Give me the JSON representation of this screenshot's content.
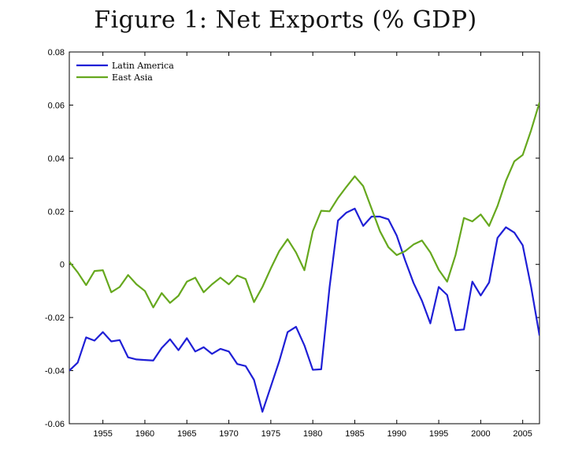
{
  "chart_data": {
    "type": "line",
    "title": "Figure 1: Net Exports (% GDP)",
    "xlabel": "",
    "ylabel": "",
    "xlim": [
      1951,
      2007
    ],
    "ylim": [
      -0.06,
      0.08
    ],
    "x_ticks": [
      1955,
      1960,
      1965,
      1970,
      1975,
      1980,
      1985,
      1990,
      1995,
      2000,
      2005
    ],
    "y_ticks": [
      -0.06,
      -0.04,
      -0.02,
      0,
      0.02,
      0.04,
      0.06,
      0.08
    ],
    "y_tick_labels": [
      "-0.06",
      "-0.04",
      "-0.02",
      "0",
      "0.02",
      "0.04",
      "0.06",
      "0.08"
    ],
    "grid": false,
    "legend_position": "top-left",
    "series": [
      {
        "name": "Latin America",
        "color": "#1f1fd6",
        "x": [
          1951,
          1952,
          1953,
          1954,
          1955,
          1956,
          1957,
          1958,
          1959,
          1960,
          1961,
          1962,
          1963,
          1964,
          1965,
          1966,
          1967,
          1968,
          1969,
          1970,
          1971,
          1972,
          1973,
          1974,
          1975,
          1976,
          1977,
          1978,
          1979,
          1980,
          1981,
          1982,
          1983,
          1984,
          1985,
          1986,
          1987,
          1988,
          1989,
          1990,
          1991,
          1992,
          1993,
          1994,
          1995,
          1996,
          1997,
          1998,
          1999,
          2000,
          2001,
          2002,
          2003,
          2004,
          2005,
          2006,
          2007
        ],
        "values": [
          -0.04,
          -0.037,
          -0.0275,
          -0.0287,
          -0.0255,
          -0.029,
          -0.0285,
          -0.035,
          -0.0358,
          -0.036,
          -0.0362,
          -0.0315,
          -0.0282,
          -0.0323,
          -0.0278,
          -0.0328,
          -0.0312,
          -0.0337,
          -0.0318,
          -0.0328,
          -0.0375,
          -0.0383,
          -0.0435,
          -0.0555,
          -0.046,
          -0.0365,
          -0.0255,
          -0.0235,
          -0.0305,
          -0.0397,
          -0.0395,
          -0.0085,
          0.0165,
          0.0195,
          0.021,
          0.0145,
          0.018,
          0.018,
          0.017,
          0.0108,
          0.0015,
          -0.007,
          -0.0137,
          -0.0222,
          -0.0085,
          -0.0115,
          -0.0248,
          -0.0245,
          -0.0065,
          -0.0117,
          -0.0068,
          0.01,
          0.014,
          0.012,
          0.0072,
          -0.0085,
          -0.0268
        ]
      },
      {
        "name": "East Asia",
        "color": "#66a81e",
        "x": [
          1951,
          1952,
          1953,
          1954,
          1955,
          1956,
          1957,
          1958,
          1959,
          1960,
          1961,
          1962,
          1963,
          1964,
          1965,
          1966,
          1967,
          1968,
          1969,
          1970,
          1971,
          1972,
          1973,
          1974,
          1975,
          1976,
          1977,
          1978,
          1979,
          1980,
          1981,
          1982,
          1983,
          1984,
          1985,
          1986,
          1987,
          1988,
          1989,
          1990,
          1991,
          1992,
          1993,
          1994,
          1995,
          1996,
          1997,
          1998,
          1999,
          2000,
          2001,
          2002,
          2003,
          2004,
          2005,
          2006,
          2007
        ],
        "values": [
          0.001,
          -0.003,
          -0.0078,
          -0.0025,
          -0.0022,
          -0.0105,
          -0.0085,
          -0.004,
          -0.0075,
          -0.01,
          -0.0162,
          -0.0108,
          -0.0145,
          -0.0118,
          -0.0065,
          -0.005,
          -0.0105,
          -0.0075,
          -0.005,
          -0.0075,
          -0.0042,
          -0.0055,
          -0.0142,
          -0.0085,
          -0.0015,
          0.005,
          0.0095,
          0.0045,
          -0.0022,
          0.0125,
          0.0202,
          0.02,
          0.025,
          0.0292,
          0.0332,
          0.0295,
          0.021,
          0.0125,
          0.0065,
          0.0035,
          0.005,
          0.0075,
          0.009,
          0.0045,
          -0.002,
          -0.0065,
          0.0035,
          0.0175,
          0.0162,
          0.0188,
          0.0145,
          0.022,
          0.0315,
          0.0388,
          0.0412,
          0.0505,
          0.061
        ]
      }
    ]
  }
}
